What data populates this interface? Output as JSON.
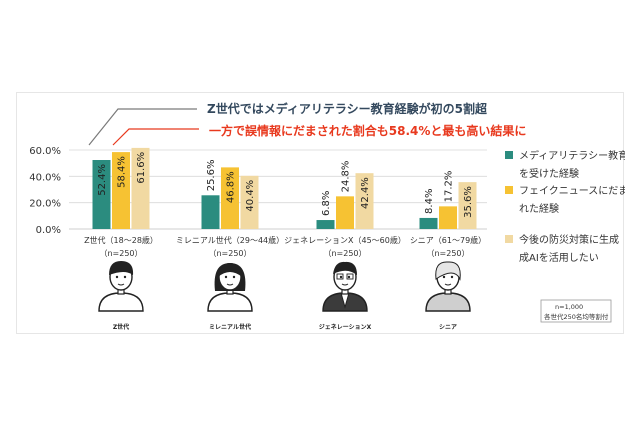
{
  "headline": {
    "line1": "Z世代ではメディアリテラシー教育経験が初の5割超",
    "line2": "一方で誤情報にだまされた割合も58.4%と最も高い結果に",
    "line1_color": "#34495e",
    "line2_color": "#e8391e"
  },
  "colors": {
    "teal": "#2b8c7f",
    "yellow": "#f6c233",
    "tan": "#f1d9a2",
    "grid": "#d9d9d9"
  },
  "chart_data": {
    "type": "bar",
    "categories": [
      "Z世代（18～28歳）",
      "ミレニアル世代（29～44歳）",
      "ジェネレーションX（45～60歳）",
      "シニア（61～79歳）"
    ],
    "category_n": [
      "（n=250）",
      "（n=250）",
      "（n=250）",
      "（n=250）"
    ],
    "series": [
      {
        "name": "メディアリテラシー教育を受けた経験",
        "values": [
          52.4,
          25.6,
          6.8,
          8.4
        ],
        "labels": [
          "52.4%",
          "25.6%",
          "6.8%",
          "8.4%"
        ]
      },
      {
        "name": "フェイクニュースにだまされた経験",
        "values": [
          58.4,
          46.8,
          24.8,
          17.2
        ],
        "labels": [
          "58.4%",
          "46.8%",
          "24.8%",
          "17.2%"
        ]
      },
      {
        "name": "今後の防災対策に生成AIを活用したい",
        "values": [
          61.6,
          40.4,
          42.4,
          35.6
        ],
        "labels": [
          "61.6%",
          "40.4%",
          "42.4%",
          "35.6%"
        ]
      }
    ],
    "yticks": [
      "0.0%",
      "20.0%",
      "40.0%",
      "60.0%"
    ],
    "ylim": [
      0,
      60
    ],
    "legend_position": "right"
  },
  "legend": {
    "items": [
      {
        "lines": [
          "メディアリテラシー教育",
          "を受けた経験"
        ]
      },
      {
        "lines": [
          "フェイクニュースにだまさ",
          "れた経験"
        ]
      },
      {
        "lines": [
          "今後の防災対策に生成",
          "成AIを活用したい"
        ]
      }
    ]
  },
  "avatars": [
    "Z世代",
    "ミレニアル世代",
    "ジェネレーションX",
    "シニア"
  ],
  "note": {
    "line1": "n=1,000",
    "line2": "各世代250名均等割付"
  }
}
